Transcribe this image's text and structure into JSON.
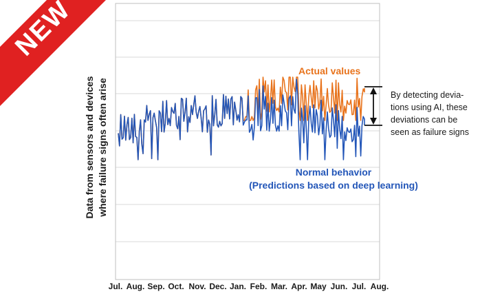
{
  "badge": {
    "text": "NEW",
    "color": "#e02121"
  },
  "chart_data": {
    "type": "line",
    "title": "",
    "ylabel": [
      "Data from sensors and devices",
      "where failure signs often arise"
    ],
    "xlabel": "",
    "x_tick_labels": [
      "Jul.",
      "Aug.",
      "Sep.",
      "Oct.",
      "Nov.",
      "Dec.",
      "Jan.",
      "Feb.",
      "Mar.",
      "Apr.",
      "May",
      "Jun.",
      "Jul.",
      "Aug."
    ],
    "grid": "horizontal",
    "y_ticks_visible": false,
    "series": [
      {
        "name": "Actual values",
        "color": "#e8731c",
        "note": "follows Normal behavior until ~Feb., then runs consistently higher",
        "values": []
      },
      {
        "name": "Normal behavior (Predictions based on deep learning)",
        "color": "#2356b8",
        "values": []
      }
    ],
    "annotation": {
      "text": [
        "By detecting devia-",
        "tions using AI, these",
        "deviations can be",
        "seen as failure signs"
      ],
      "arrow": "double-headed vertical between series at end of range"
    }
  },
  "labels": {
    "actual": "Actual values",
    "normal_line1": "Normal behavior",
    "normal_line2": "(Predictions based on deep learning)"
  },
  "colors": {
    "actual": "#e8731c",
    "normal": "#2356b8",
    "grid": "#d9d9d9",
    "axis": "#999999"
  }
}
